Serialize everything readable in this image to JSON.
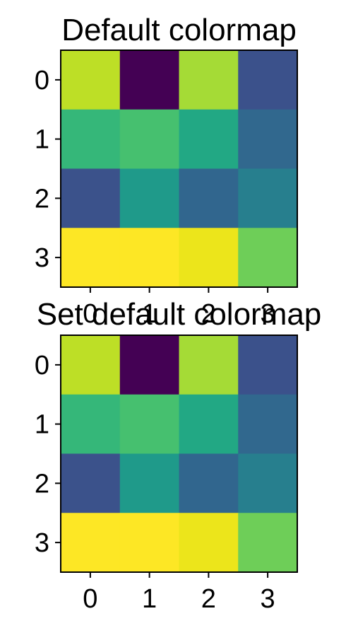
{
  "chart_data": [
    {
      "type": "heatmap",
      "title": "Default colormap",
      "x_ticks": [
        "0",
        "1",
        "2",
        "3"
      ],
      "y_ticks": [
        "0",
        "1",
        "2",
        "3"
      ],
      "colormap": "viridis",
      "values": [
        [
          0.86,
          0.0,
          0.84,
          0.25
        ],
        [
          0.6,
          0.65,
          0.54,
          0.32
        ],
        [
          0.24,
          0.47,
          0.33,
          0.42
        ],
        [
          1.0,
          1.0,
          0.95,
          0.74
        ]
      ],
      "cell_colors": [
        [
          "#bddf26",
          "#440154",
          "#a5db36",
          "#3b518b"
        ],
        [
          "#35b779",
          "#46c06f",
          "#22a884",
          "#31688e"
        ],
        [
          "#3b528b",
          "#1f9a8a",
          "#31668e",
          "#277f8e"
        ],
        [
          "#fde725",
          "#fde725",
          "#ece51b",
          "#6ece58"
        ]
      ]
    },
    {
      "type": "heatmap",
      "title": "Set default colormap",
      "x_ticks": [
        "0",
        "1",
        "2",
        "3"
      ],
      "y_ticks": [
        "0",
        "1",
        "2",
        "3"
      ],
      "colormap": "viridis",
      "values": [
        [
          0.86,
          0.0,
          0.84,
          0.25
        ],
        [
          0.6,
          0.65,
          0.54,
          0.32
        ],
        [
          0.24,
          0.47,
          0.33,
          0.42
        ],
        [
          1.0,
          1.0,
          0.95,
          0.74
        ]
      ],
      "cell_colors": [
        [
          "#bddf26",
          "#440154",
          "#a5db36",
          "#3b518b"
        ],
        [
          "#35b779",
          "#46c06f",
          "#22a884",
          "#31688e"
        ],
        [
          "#3b528b",
          "#1f9a8a",
          "#31668e",
          "#277f8e"
        ],
        [
          "#fde725",
          "#fde725",
          "#ece51b",
          "#6ece58"
        ]
      ]
    }
  ]
}
